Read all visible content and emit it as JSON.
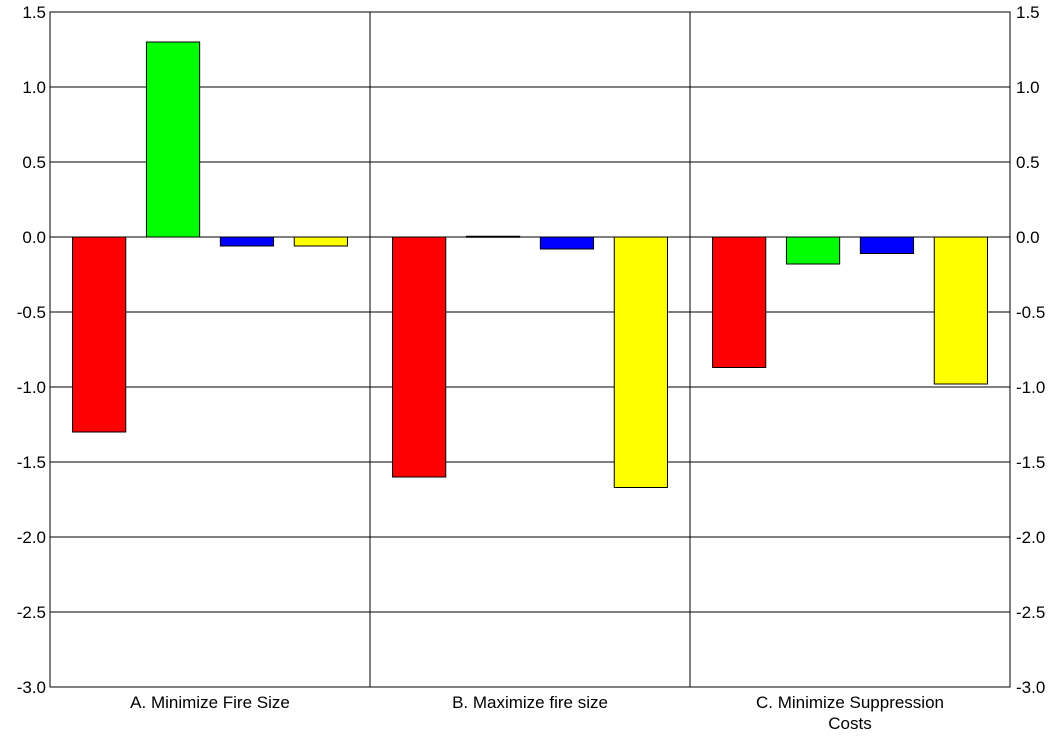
{
  "chart_data": {
    "type": "bar",
    "title": "",
    "xlabel": "",
    "ylabel": "",
    "ylim": [
      -3.0,
      1.5
    ],
    "y_ticks": [
      "1.5",
      "1.0",
      "0.5",
      "0.0",
      "-0.5",
      "-1.0",
      "-1.5",
      "-2.0",
      "-2.5",
      "-3.0"
    ],
    "y_tick_values": [
      1.5,
      1.0,
      0.5,
      0.0,
      -0.5,
      -1.0,
      -1.5,
      -2.0,
      -2.5,
      -3.0
    ],
    "y_axis_right_duplicate": true,
    "grid": "horizontal",
    "category_dividers": true,
    "categories": [
      [
        "A. Minimize Fire Size"
      ],
      [
        "B. Maximize fire size"
      ],
      [
        "C. Minimize Suppression",
        "Costs"
      ]
    ],
    "series": [
      {
        "color": "#ff0000",
        "values": [
          -1.3,
          -1.6,
          -0.87
        ]
      },
      {
        "color": "#00ff00",
        "values": [
          1.3,
          0.005,
          -0.18
        ]
      },
      {
        "color": "#0000ff",
        "values": [
          -0.06,
          -0.08,
          -0.11
        ]
      },
      {
        "color": "#ffff00",
        "values": [
          -0.06,
          -1.67,
          -0.98
        ]
      }
    ]
  }
}
